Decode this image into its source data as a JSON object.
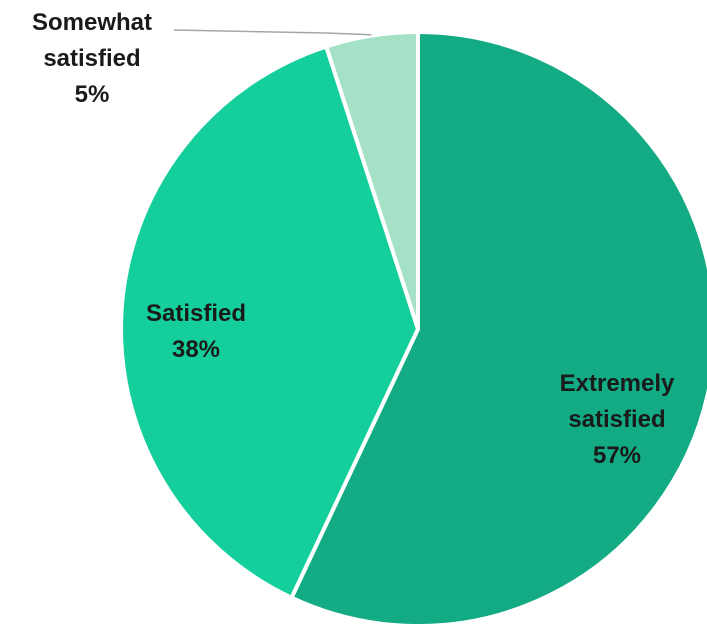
{
  "chart_data": {
    "type": "pie",
    "title": "",
    "slices": [
      {
        "label_lines": [
          "Extremely",
          "satisfied"
        ],
        "value": 57,
        "value_label": "57%",
        "color": "#12ab83"
      },
      {
        "label_lines": [
          "Satisfied"
        ],
        "value": 38,
        "value_label": "38%",
        "color": "#14cf9b"
      },
      {
        "label_lines": [
          "Somewhat",
          "satisfied"
        ],
        "value": 5,
        "value_label": "5%",
        "color": "#a4e1c7"
      }
    ],
    "start_angle": "12 o'clock",
    "direction": "clockwise",
    "legend": "none",
    "slice_separator_color": "#ffffff",
    "leader_line_color": "#a6a6a6"
  }
}
